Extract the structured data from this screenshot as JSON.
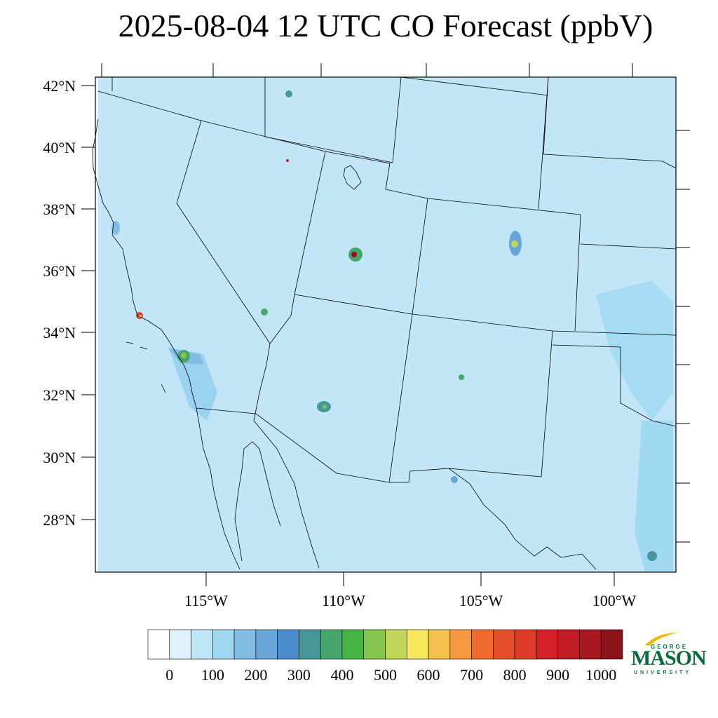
{
  "title": "2025-08-04 12 UTC CO Forecast (ppbV)",
  "map": {
    "lat_labels": [
      "42°N",
      "40°N",
      "38°N",
      "36°N",
      "34°N",
      "32°N",
      "30°N",
      "28°N"
    ],
    "lon_labels": [
      "115°W",
      "110°W",
      "105°W",
      "100°W"
    ],
    "base_color": "#c2e6f7",
    "boundary_color": "#000000"
  },
  "colorbar": {
    "colors": [
      "#ffffff",
      "#dff2fb",
      "#bee6f7",
      "#9fd6f0",
      "#82bde4",
      "#68a6d9",
      "#4a8bc9",
      "#46979a",
      "#48a56b",
      "#47b445",
      "#85c44e",
      "#c1d65a",
      "#f7e75a",
      "#f6c04d",
      "#f5983f",
      "#f06a2f",
      "#e64d2a",
      "#df3a28",
      "#d42028",
      "#c11b26",
      "#a81820",
      "#8c141b"
    ],
    "labels": [
      "0",
      "100",
      "200",
      "300",
      "400",
      "500",
      "600",
      "700",
      "800",
      "900",
      "1000"
    ]
  },
  "logo": {
    "line1": "GEORGE",
    "line2": "MASON",
    "line3": "UNIVERSITY",
    "brand_green": "#0b6b3a",
    "brand_gold": "#f2b800"
  }
}
